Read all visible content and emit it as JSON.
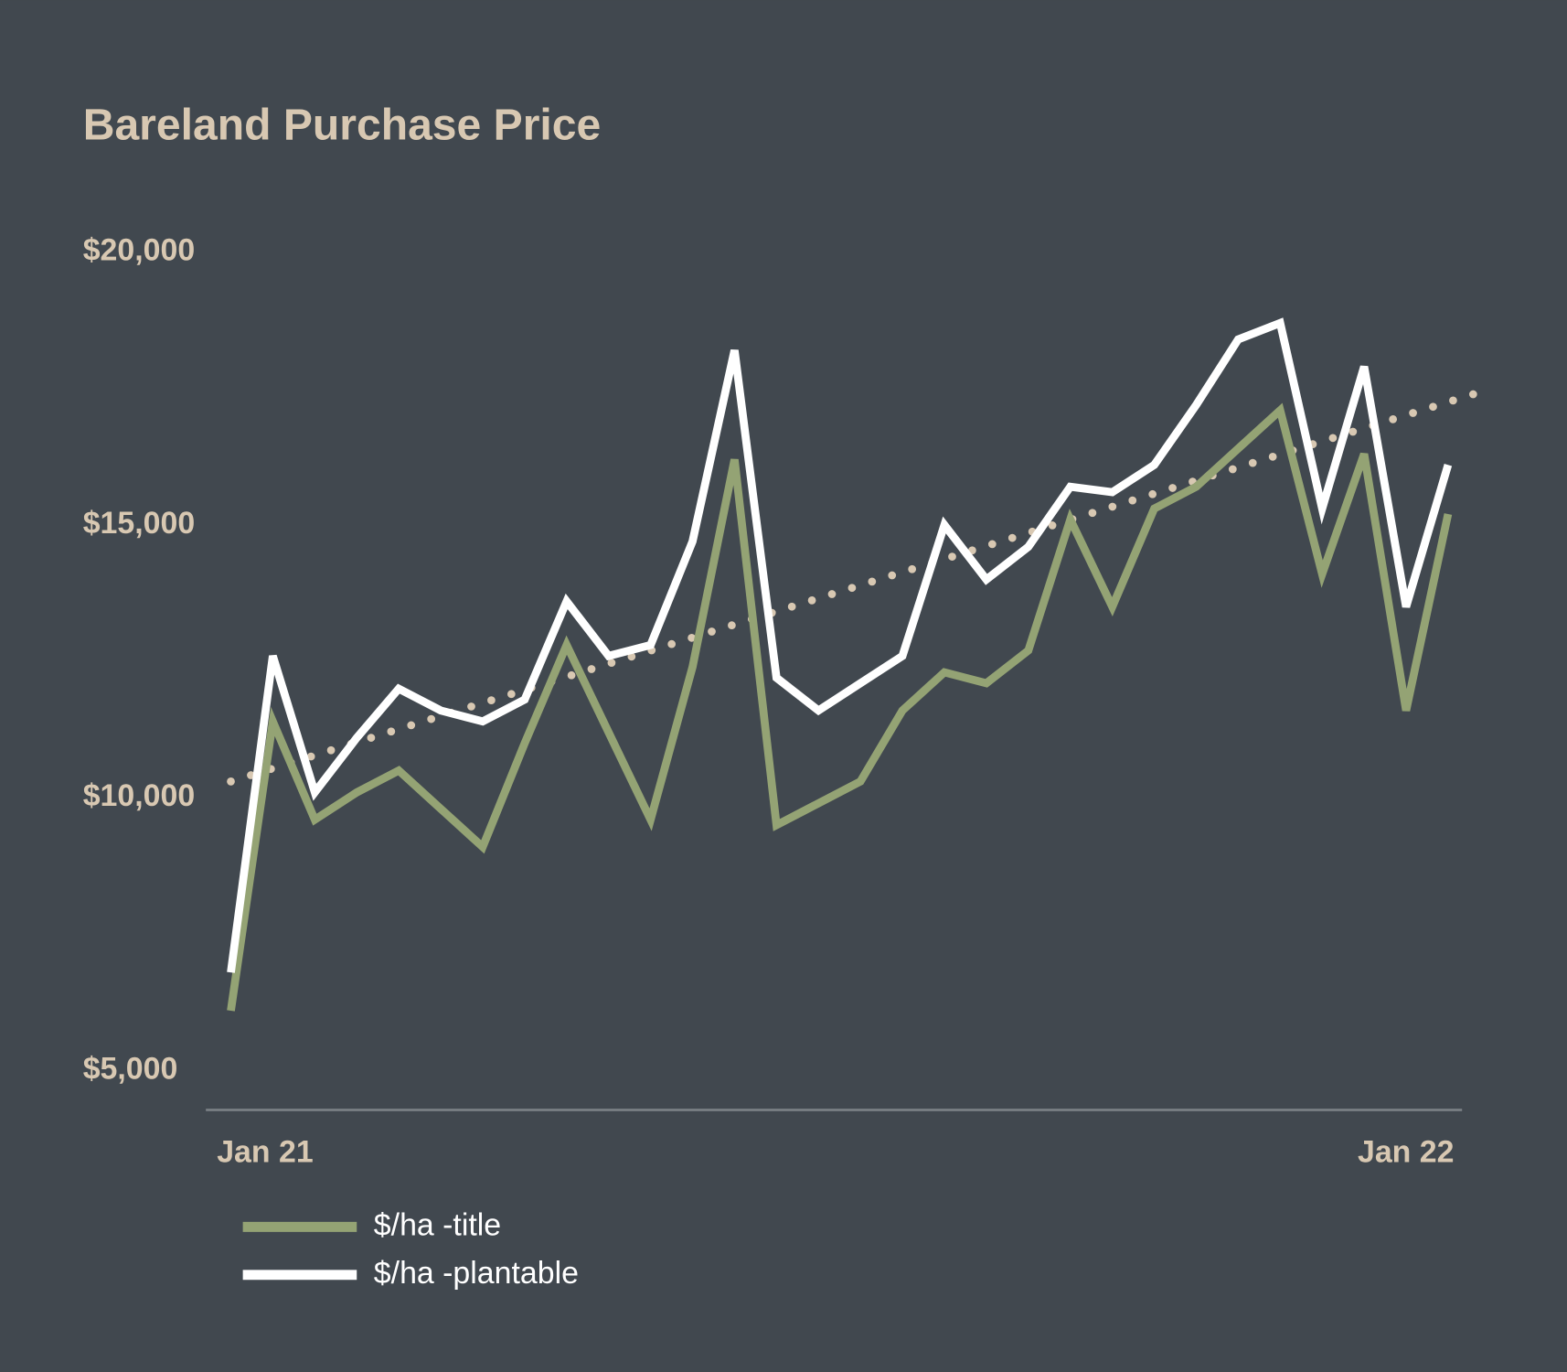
{
  "chart_data": {
    "type": "line",
    "title": "Bareland Purchase Price",
    "categories": [
      "Jan 21",
      null,
      null,
      null,
      null,
      null,
      null,
      null,
      null,
      null,
      null,
      null,
      null,
      null,
      null,
      null,
      null,
      null,
      null,
      null,
      null,
      null,
      null,
      null,
      null,
      null,
      null,
      null,
      null,
      "Jan 22"
    ],
    "series": [
      {
        "name": "$/ha -title",
        "color": "#94a374",
        "values": [
          6100,
          11400,
          9600,
          10100,
          10500,
          9800,
          9100,
          11000,
          12800,
          11200,
          9600,
          12400,
          16200,
          9500,
          9900,
          10300,
          11600,
          12300,
          12100,
          12700,
          15100,
          13500,
          15300,
          15700,
          16400,
          17100,
          14100,
          16300,
          11600,
          15200
        ]
      },
      {
        "name": "$/ha -plantable",
        "color": "#ffffff",
        "values": [
          6800,
          12600,
          10100,
          11100,
          12000,
          11600,
          11400,
          11800,
          13600,
          12600,
          12800,
          14700,
          18200,
          12200,
          11600,
          12100,
          12600,
          15000,
          14000,
          14600,
          15700,
          15600,
          16100,
          17200,
          18400,
          18700,
          15300,
          17900,
          13500,
          16100
        ]
      }
    ],
    "trendline": {
      "color": "#d8c8b2",
      "values": [
        10300,
        17400
      ]
    },
    "ylim": [
      4300,
      20000
    ],
    "yticks": [
      {
        "value": 5000,
        "label": "$5,000"
      },
      {
        "value": 10000,
        "label": "$10,000"
      },
      {
        "value": 15000,
        "label": "$15,000"
      },
      {
        "value": 20000,
        "label": "$20,000"
      }
    ]
  }
}
